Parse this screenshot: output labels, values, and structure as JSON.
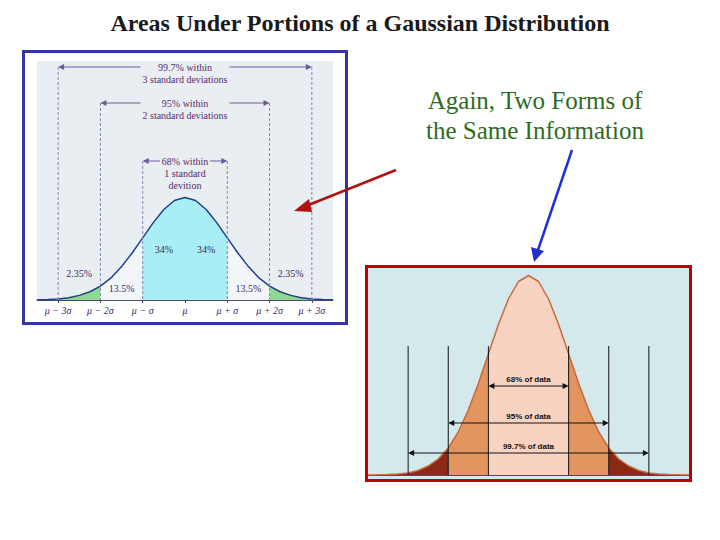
{
  "slide": {
    "title": "Areas Under Portions of a Gaussian Distribution",
    "note": "Again, Two Forms of\nthe Same Information"
  },
  "chart_data": [
    {
      "type": "line",
      "x": [
        -3.5,
        -3.25,
        -3,
        -2.75,
        -2.5,
        -2.25,
        -2,
        -1.75,
        -1.5,
        -1.25,
        -1,
        -0.75,
        -0.5,
        -0.25,
        0,
        0.25,
        0.5,
        0.75,
        1,
        1.25,
        1.5,
        1.75,
        2,
        2.25,
        2.5,
        2.75,
        3,
        3.25,
        3.5
      ],
      "values": [
        0.001,
        0.002,
        0.004,
        0.009,
        0.018,
        0.032,
        0.054,
        0.086,
        0.13,
        0.183,
        0.242,
        0.301,
        0.352,
        0.387,
        0.399,
        0.387,
        0.352,
        0.301,
        0.242,
        0.183,
        0.13,
        0.086,
        0.054,
        0.032,
        0.018,
        0.009,
        0.004,
        0.002,
        0.001
      ],
      "color": "#1f3f8f",
      "xlim": [
        -3.5,
        3.5
      ],
      "ylim": [
        0,
        0.93
      ],
      "xticks": [
        {
          "value": -3,
          "label": "μ − 3σ"
        },
        {
          "value": -2,
          "label": "μ − 2σ"
        },
        {
          "value": -1,
          "label": "μ − σ"
        },
        {
          "value": 0,
          "label": "μ"
        },
        {
          "value": 1,
          "label": "μ + σ"
        },
        {
          "value": 2,
          "label": "μ + 2σ"
        },
        {
          "value": 3,
          "label": "μ + 3σ"
        }
      ],
      "yticks": [],
      "grid": false,
      "tick_labels": "x",
      "regions": [
        {
          "from": -3.5,
          "to": -3,
          "color": "#f3f6f9"
        },
        {
          "from": -3,
          "to": -2,
          "color": "#8fd88f",
          "value": 2.35,
          "label": "2.35%"
        },
        {
          "from": -2,
          "to": -1,
          "color": "#f3f6f9",
          "value": 13.5,
          "label": "13.5%"
        },
        {
          "from": -1,
          "to": 0,
          "color": "#a8eef4",
          "value": 34,
          "label": "34%"
        },
        {
          "from": 0,
          "to": 1,
          "color": "#a8eef4",
          "value": 34,
          "label": "34%"
        },
        {
          "from": 1,
          "to": 2,
          "color": "#f3f6f9",
          "value": 13.5,
          "label": "13.5%"
        },
        {
          "from": 2,
          "to": 3,
          "color": "#8fd88f",
          "value": 2.35,
          "label": "2.35%"
        },
        {
          "from": 3,
          "to": 3.5,
          "color": "#f3f6f9"
        }
      ],
      "spans": [
        {
          "half_width": 3,
          "value": 99.7,
          "label": "99.7% within\n3 standard deviations"
        },
        {
          "half_width": 2,
          "value": 95,
          "label": "95% within\n2 standard deviations"
        },
        {
          "half_width": 1,
          "value": 68,
          "label": "68% within\n1 standard\ndevition"
        }
      ]
    },
    {
      "type": "line",
      "x": [
        -4,
        -3.75,
        -3.5,
        -3.25,
        -3,
        -2.75,
        -2.5,
        -2.25,
        -2,
        -1.75,
        -1.5,
        -1.25,
        -1,
        -0.75,
        -0.5,
        -0.25,
        0,
        0.25,
        0.5,
        0.75,
        1,
        1.25,
        1.5,
        1.75,
        2,
        2.25,
        2.5,
        2.75,
        3,
        3.25,
        3.5,
        3.75,
        4
      ],
      "values": [
        0.0001,
        0.0003,
        0.001,
        0.002,
        0.004,
        0.009,
        0.018,
        0.032,
        0.054,
        0.086,
        0.13,
        0.183,
        0.242,
        0.301,
        0.352,
        0.387,
        0.399,
        0.387,
        0.352,
        0.301,
        0.242,
        0.183,
        0.13,
        0.086,
        0.054,
        0.032,
        0.018,
        0.009,
        0.004,
        0.002,
        0.001,
        0.0003,
        0.0001
      ],
      "color": "#c8683e",
      "xlim": [
        -4,
        4
      ],
      "ylim": [
        0,
        0.41
      ],
      "xticks": [],
      "yticks": [],
      "grid": false,
      "tick_labels": false,
      "regions": [
        {
          "from": -4,
          "to": -2,
          "color": "#8b2a12"
        },
        {
          "from": -2,
          "to": -1,
          "color": "#e2955f"
        },
        {
          "from": -1,
          "to": 1,
          "color": "#f9d3c2"
        },
        {
          "from": 1,
          "to": 2,
          "color": "#e2955f"
        },
        {
          "from": 2,
          "to": 4,
          "color": "#8b2a12"
        }
      ],
      "spans": [
        {
          "half_width": 1,
          "value": 68,
          "label": "68% of data"
        },
        {
          "half_width": 2,
          "value": 95,
          "label": "95% of data"
        },
        {
          "half_width": 3,
          "value": 99.7,
          "label": "99.7% of data"
        }
      ]
    }
  ]
}
